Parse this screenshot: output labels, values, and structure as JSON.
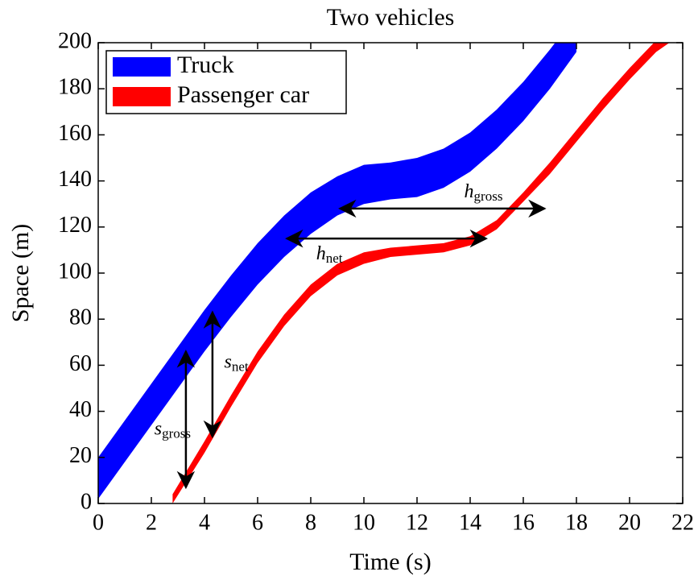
{
  "chart_data": {
    "type": "band",
    "title": "Two vehicles",
    "x_label": "Time (s)",
    "y_label": "Space (m)",
    "xlim": [
      0,
      22
    ],
    "ylim": [
      0,
      200
    ],
    "xticks": [
      0,
      2,
      4,
      6,
      8,
      10,
      12,
      14,
      16,
      18,
      20,
      22
    ],
    "yticks": [
      0,
      20,
      40,
      60,
      80,
      100,
      120,
      140,
      160,
      180,
      200
    ],
    "grid": false,
    "legend": "upper left",
    "series": [
      {
        "name": "Truck",
        "color": "#0000ff",
        "x": [
          0,
          1,
          2,
          3,
          4,
          5,
          6,
          7,
          8,
          9,
          10,
          11,
          12,
          13,
          14,
          15,
          16,
          17,
          18
        ],
        "upper": [
          20,
          36,
          52,
          68,
          84,
          99,
          113,
          125,
          135,
          142,
          147,
          148,
          150,
          154,
          161,
          171,
          183,
          197,
          212
        ],
        "lower": [
          2,
          18,
          34,
          50,
          66,
          81,
          95,
          107,
          117,
          125,
          130,
          132,
          133,
          137,
          144,
          154,
          166,
          180,
          196
        ]
      },
      {
        "name": "Passenger car",
        "color": "#ff0000",
        "x": [
          2.8,
          4,
          5,
          6,
          7,
          8,
          9,
          10,
          11,
          12,
          13,
          14,
          15,
          16,
          17,
          18,
          19,
          20,
          21,
          21.5
        ],
        "upper": [
          4,
          27,
          47,
          66,
          82,
          95,
          104,
          109,
          111,
          112,
          113,
          116,
          123,
          135,
          148,
          162,
          176,
          189,
          201,
          206
        ],
        "lower": [
          0,
          22,
          42,
          61,
          77,
          90,
          99,
          104,
          107,
          108,
          109,
          112,
          119,
          131,
          143,
          157,
          171,
          184,
          196,
          200
        ]
      }
    ],
    "annotations": [
      {
        "symbol": "s",
        "subscript": "gross",
        "orientation": "vertical",
        "x": 3.3,
        "from": 7,
        "to": 66,
        "label_x": 2.8,
        "label_y": 32
      },
      {
        "symbol": "s",
        "subscript": "net",
        "orientation": "vertical",
        "x": 4.3,
        "from": 29,
        "to": 83,
        "label_x": 5.2,
        "label_y": 61
      },
      {
        "symbol": "h",
        "subscript": "net",
        "orientation": "horizontal",
        "y": 115,
        "from": 7.1,
        "to": 14.6,
        "label_x": 8.7,
        "label_y": 108
      },
      {
        "symbol": "h",
        "subscript": "gross",
        "orientation": "horizontal",
        "y": 128,
        "from": 9.1,
        "to": 16.8,
        "label_x": 14.5,
        "label_y": 135
      }
    ]
  }
}
